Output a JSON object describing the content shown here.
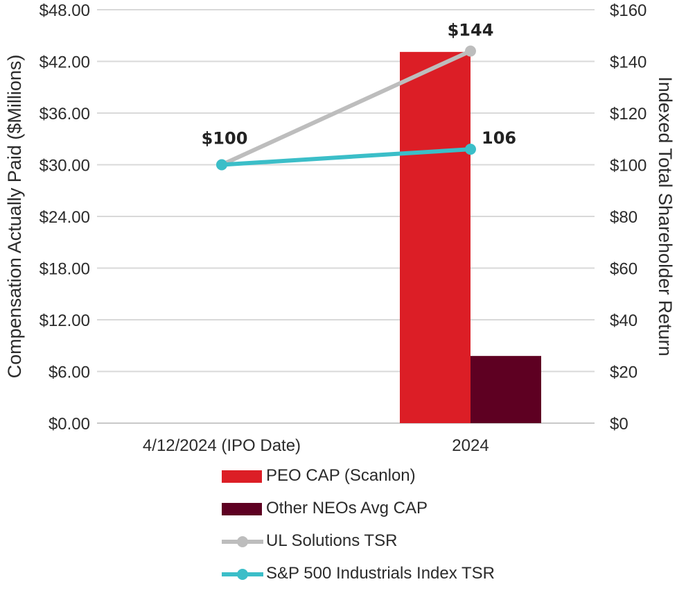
{
  "chart_data": {
    "type": "bar+line",
    "categories": [
      "4/12/2024 (IPO Date)",
      "2024"
    ],
    "left_axis": {
      "label": "Compensation Actually Paid ($Millions)",
      "range": [
        0,
        48
      ],
      "ticks": [
        "$0.00",
        "$6.00",
        "$12.00",
        "$18.00",
        "$24.00",
        "$30.00",
        "$36.00",
        "$42.00",
        "$48.00"
      ],
      "tick_values": [
        0,
        6,
        12,
        18,
        24,
        30,
        36,
        42,
        48
      ]
    },
    "right_axis": {
      "label": "Indexed Total Shareholder Return",
      "range": [
        0,
        160
      ],
      "ticks": [
        "$0",
        "$20",
        "$40",
        "$60",
        "$80",
        "$100",
        "$120",
        "$140",
        "$160"
      ],
      "tick_values": [
        0,
        20,
        40,
        60,
        80,
        100,
        120,
        140,
        160
      ]
    },
    "bar_series": [
      {
        "name": "PEO CAP (Scanlon)",
        "color": "#dc1e26",
        "values": [
          null,
          43.1
        ]
      },
      {
        "name": "Other NEOs Avg CAP",
        "color": "#5e0022",
        "values": [
          null,
          7.8
        ]
      }
    ],
    "line_series": [
      {
        "name": "UL Solutions TSR",
        "color": "#bdbdbd",
        "values": [
          100,
          144
        ],
        "labels": [
          "$100",
          "$144"
        ]
      },
      {
        "name": "S&P 500 Industrials Index TSR",
        "color": "#3bbec8",
        "values": [
          100,
          106
        ],
        "labels": [
          "",
          "106"
        ]
      }
    ],
    "grid": true,
    "legend_position": "bottom"
  }
}
